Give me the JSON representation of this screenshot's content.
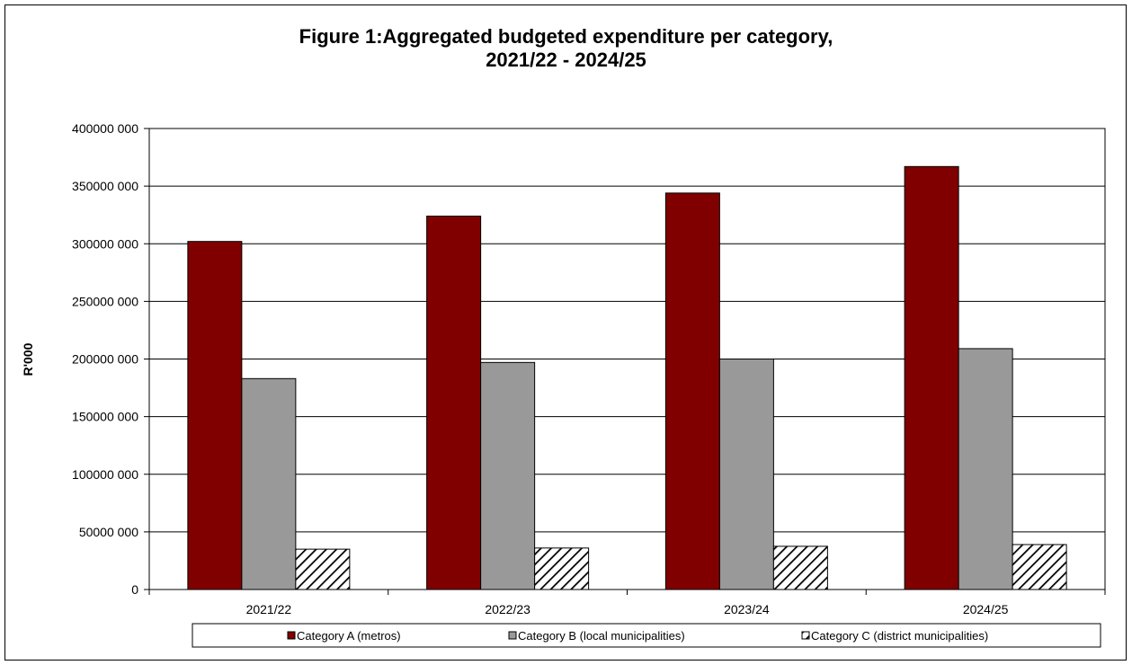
{
  "chart_data": {
    "type": "bar",
    "title_lines": [
      "Figure 1:Aggregated budgeted expenditure per category,",
      "2021/22 - 2024/25"
    ],
    "xlabel": "",
    "ylabel": "R'000",
    "categories": [
      "2021/22",
      "2022/23",
      "2023/24",
      "2024/25"
    ],
    "ylim": [
      0,
      400000000
    ],
    "yticks": [
      0,
      50000000,
      100000000,
      150000000,
      200000000,
      250000000,
      300000000,
      350000000,
      400000000
    ],
    "ytick_labels": [
      "0",
      "50000 000",
      "100000 000",
      "150000 000",
      "200000 000",
      "250000 000",
      "300000 000",
      "350000 000",
      "400000 000"
    ],
    "grid": "horizontal",
    "legend_position": "bottom",
    "series": [
      {
        "name": "Category A (metros)",
        "color": "#800000",
        "pattern": "solid",
        "values": [
          302000000,
          324000000,
          344000000,
          367000000
        ]
      },
      {
        "name": "Category B (local municipalities)",
        "color": "#999999",
        "pattern": "solid",
        "values": [
          183000000,
          197000000,
          200000000,
          209000000
        ]
      },
      {
        "name": "Category C (district municipalities)",
        "color": "#ffffff",
        "pattern": "diagonal-hatch",
        "values": [
          35000000,
          36000000,
          37500000,
          39000000
        ]
      }
    ]
  }
}
